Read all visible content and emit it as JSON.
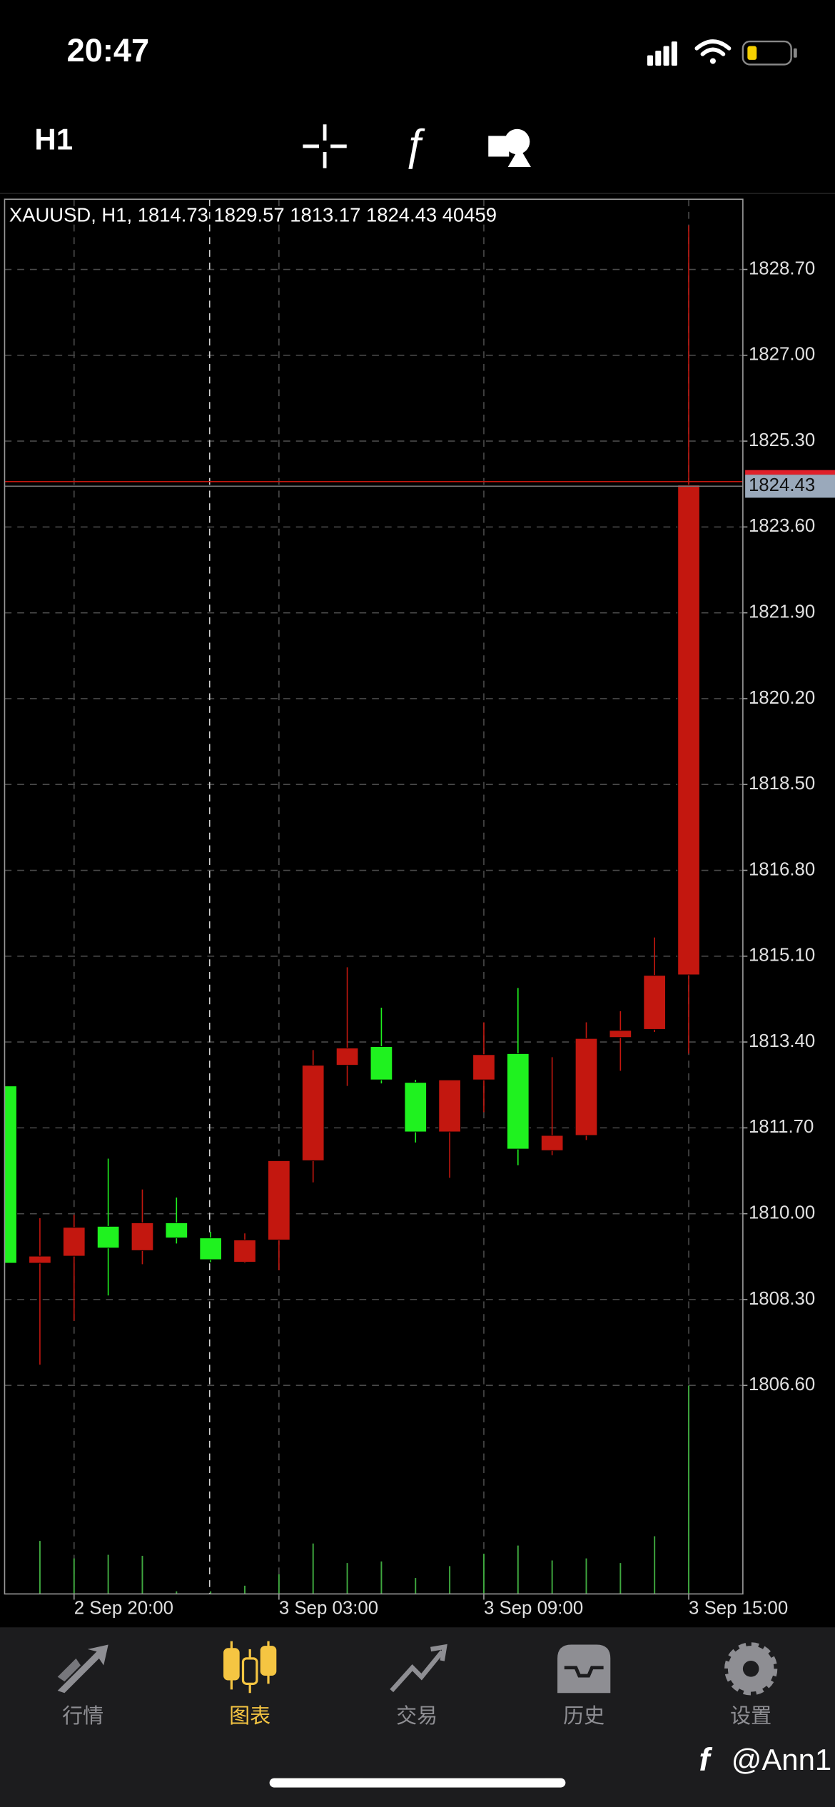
{
  "status_bar": {
    "time": "20:47"
  },
  "toolbar": {
    "timeframe": "H1"
  },
  "chart_data": {
    "type": "candlestick",
    "title": "XAUUSD, H1, 1814.73 1829.57 1813.17 1824.43 40459",
    "categories": [
      null,
      null,
      "2 Sep 20:00",
      null,
      null,
      null,
      null,
      null,
      "3 Sep 03:00",
      null,
      null,
      null,
      null,
      null,
      "3 Sep 09:00",
      null,
      null,
      null,
      null,
      null,
      "3 Sep 15:00"
    ],
    "open": [
      1812.53,
      1809.02,
      1809.16,
      1809.75,
      1809.27,
      1809.82,
      1809.52,
      1809.04,
      1809.48,
      1811.05,
      1812.94,
      1813.31,
      1812.6,
      1811.62,
      1812.65,
      1813.17,
      1811.25,
      1811.55,
      1813.49,
      1813.65,
      1814.73
    ],
    "high": [
      1812.53,
      1809.91,
      1809.98,
      1811.09,
      1810.48,
      1810.32,
      1809.64,
      1809.61,
      1811.05,
      1813.24,
      1814.88,
      1814.08,
      1812.65,
      1812.65,
      1813.79,
      1814.47,
      1813.1,
      1813.79,
      1814.01,
      1815.47,
      1829.57
    ],
    "low": [
      1809.02,
      1807.01,
      1807.88,
      1808.38,
      1809.0,
      1809.41,
      1809.04,
      1809.02,
      1808.88,
      1810.62,
      1812.53,
      1812.58,
      1811.41,
      1810.71,
      1812.01,
      1810.96,
      1811.16,
      1811.46,
      1812.83,
      1813.6,
      1813.17
    ],
    "close": [
      1809.02,
      1809.16,
      1809.73,
      1809.32,
      1809.82,
      1809.52,
      1809.09,
      1809.48,
      1811.05,
      1812.94,
      1813.28,
      1812.65,
      1811.62,
      1812.65,
      1813.15,
      1811.28,
      1811.55,
      1813.47,
      1813.63,
      1814.72,
      1824.43
    ],
    "volumes": [
      null,
      10300,
      6900,
      7600,
      7400,
      500,
      500,
      1600,
      3800,
      9800,
      6000,
      6300,
      3100,
      5400,
      7800,
      9400,
      6500,
      6900,
      6000,
      11200,
      40459
    ],
    "up_color": "#c3170f",
    "down_color": "#1ff21f",
    "volume_color": "#3fa83f",
    "ylim": [
      1802.47,
      1830.09
    ],
    "yticks": [
      {
        "value": 1828.7,
        "label": "1828.70"
      },
      {
        "value": 1827,
        "label": "1827.00"
      },
      {
        "value": 1825.3,
        "label": "1825.30"
      },
      {
        "value": 1823.6,
        "label": "1823.60"
      },
      {
        "value": 1821.9,
        "label": "1821.90"
      },
      {
        "value": 1820.2,
        "label": "1820.20"
      },
      {
        "value": 1818.5,
        "label": "1818.50"
      },
      {
        "value": 1816.8,
        "label": "1816.80"
      },
      {
        "value": 1815.1,
        "label": "1815.10"
      },
      {
        "value": 1813.4,
        "label": "1813.40"
      },
      {
        "value": 1811.7,
        "label": "1811.70"
      },
      {
        "value": 1810,
        "label": "1810.00"
      },
      {
        "value": 1808.3,
        "label": "1808.30"
      },
      {
        "value": 1806.6,
        "label": "1806.60"
      }
    ],
    "grid": true
  },
  "tab_bar": {
    "tabs": [
      {
        "label": "行情",
        "active": false
      },
      {
        "label": "图表",
        "active": true
      },
      {
        "label": "交易",
        "active": false
      },
      {
        "label": "历史",
        "active": false
      },
      {
        "label": "设置",
        "active": false
      }
    ]
  },
  "watermark": "@Ann1"
}
